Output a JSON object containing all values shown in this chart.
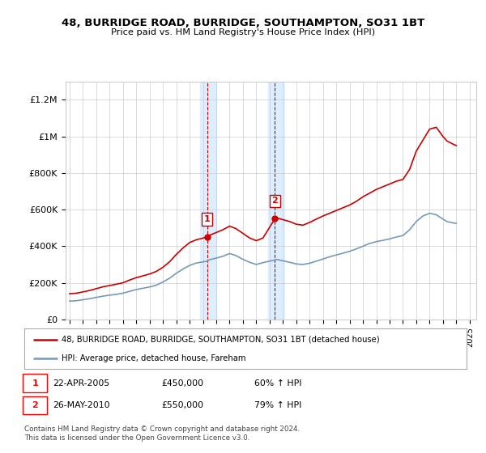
{
  "title": "48, BURRIDGE ROAD, BURRIDGE, SOUTHAMPTON, SO31 1BT",
  "subtitle": "Price paid vs. HM Land Registry's House Price Index (HPI)",
  "ylabel_ticks": [
    "£0",
    "£200K",
    "£400K",
    "£600K",
    "£800K",
    "£1M",
    "£1.2M"
  ],
  "ytick_values": [
    0,
    200000,
    400000,
    600000,
    800000,
    1000000,
    1200000
  ],
  "ylim": [
    0,
    1300000
  ],
  "xlim_start": 1994.7,
  "xlim_end": 2025.5,
  "sale1_x": 2005.31,
  "sale1_y": 450000,
  "sale2_x": 2010.4,
  "sale2_y": 550000,
  "shade_x1_start": 2004.8,
  "shade_x1_end": 2006.0,
  "shade_x2_start": 2009.9,
  "shade_x2_end": 2011.1,
  "legend_line1": "48, BURRIDGE ROAD, BURRIDGE, SOUTHAMPTON, SO31 1BT (detached house)",
  "legend_line2": "HPI: Average price, detached house, Fareham",
  "note1_label": "1",
  "note1_date": "22-APR-2005",
  "note1_price": "£450,000",
  "note1_hpi": "60% ↑ HPI",
  "note2_label": "2",
  "note2_date": "26-MAY-2010",
  "note2_price": "£550,000",
  "note2_hpi": "79% ↑ HPI",
  "footer": "Contains HM Land Registry data © Crown copyright and database right 2024.\nThis data is licensed under the Open Government Licence v3.0.",
  "line1_color": "#cc0000",
  "line2_color": "#7799bb",
  "bg_color": "#ffffff",
  "shade_color": "#ddeeff",
  "grid_color": "#cccccc",
  "years_shared": [
    1995,
    1995.5,
    1996,
    1996.5,
    1997,
    1997.5,
    1998,
    1998.5,
    1999,
    1999.5,
    2000,
    2000.5,
    2001,
    2001.5,
    2002,
    2002.5,
    2003,
    2003.5,
    2004,
    2004.5,
    2005.31,
    2005.5,
    2006,
    2006.5,
    2007,
    2007.5,
    2008,
    2008.5,
    2009,
    2009.5,
    2010.4,
    2010.5,
    2011,
    2011.5,
    2012,
    2012.5,
    2013,
    2013.5,
    2014,
    2014.5,
    2015,
    2015.5,
    2016,
    2016.5,
    2017,
    2017.5,
    2018,
    2018.5,
    2019,
    2019.5,
    2020,
    2020.5,
    2021,
    2021.5,
    2022,
    2022.5,
    2023,
    2023.3,
    2023.7,
    2024.0
  ],
  "vals_red": [
    140000,
    143000,
    150000,
    158000,
    168000,
    178000,
    185000,
    192000,
    200000,
    215000,
    228000,
    238000,
    248000,
    262000,
    285000,
    315000,
    355000,
    390000,
    420000,
    435000,
    450000,
    460000,
    475000,
    490000,
    510000,
    495000,
    470000,
    445000,
    430000,
    445000,
    550000,
    555000,
    545000,
    535000,
    520000,
    515000,
    530000,
    548000,
    565000,
    580000,
    595000,
    610000,
    625000,
    645000,
    670000,
    690000,
    710000,
    725000,
    740000,
    755000,
    765000,
    820000,
    920000,
    980000,
    1040000,
    1050000,
    1000000,
    975000,
    960000,
    950000
  ],
  "vals_blue": [
    100000,
    102000,
    107000,
    113000,
    120000,
    127000,
    132000,
    137000,
    143000,
    153000,
    163000,
    170000,
    177000,
    187000,
    204000,
    225000,
    252000,
    275000,
    295000,
    308000,
    318000,
    326000,
    335000,
    345000,
    360000,
    348000,
    328000,
    312000,
    300000,
    310000,
    325000,
    328000,
    320000,
    312000,
    303000,
    300000,
    307000,
    318000,
    330000,
    342000,
    352000,
    362000,
    372000,
    385000,
    400000,
    415000,
    425000,
    432000,
    440000,
    450000,
    458000,
    490000,
    535000,
    565000,
    580000,
    572000,
    548000,
    535000,
    528000,
    525000
  ]
}
